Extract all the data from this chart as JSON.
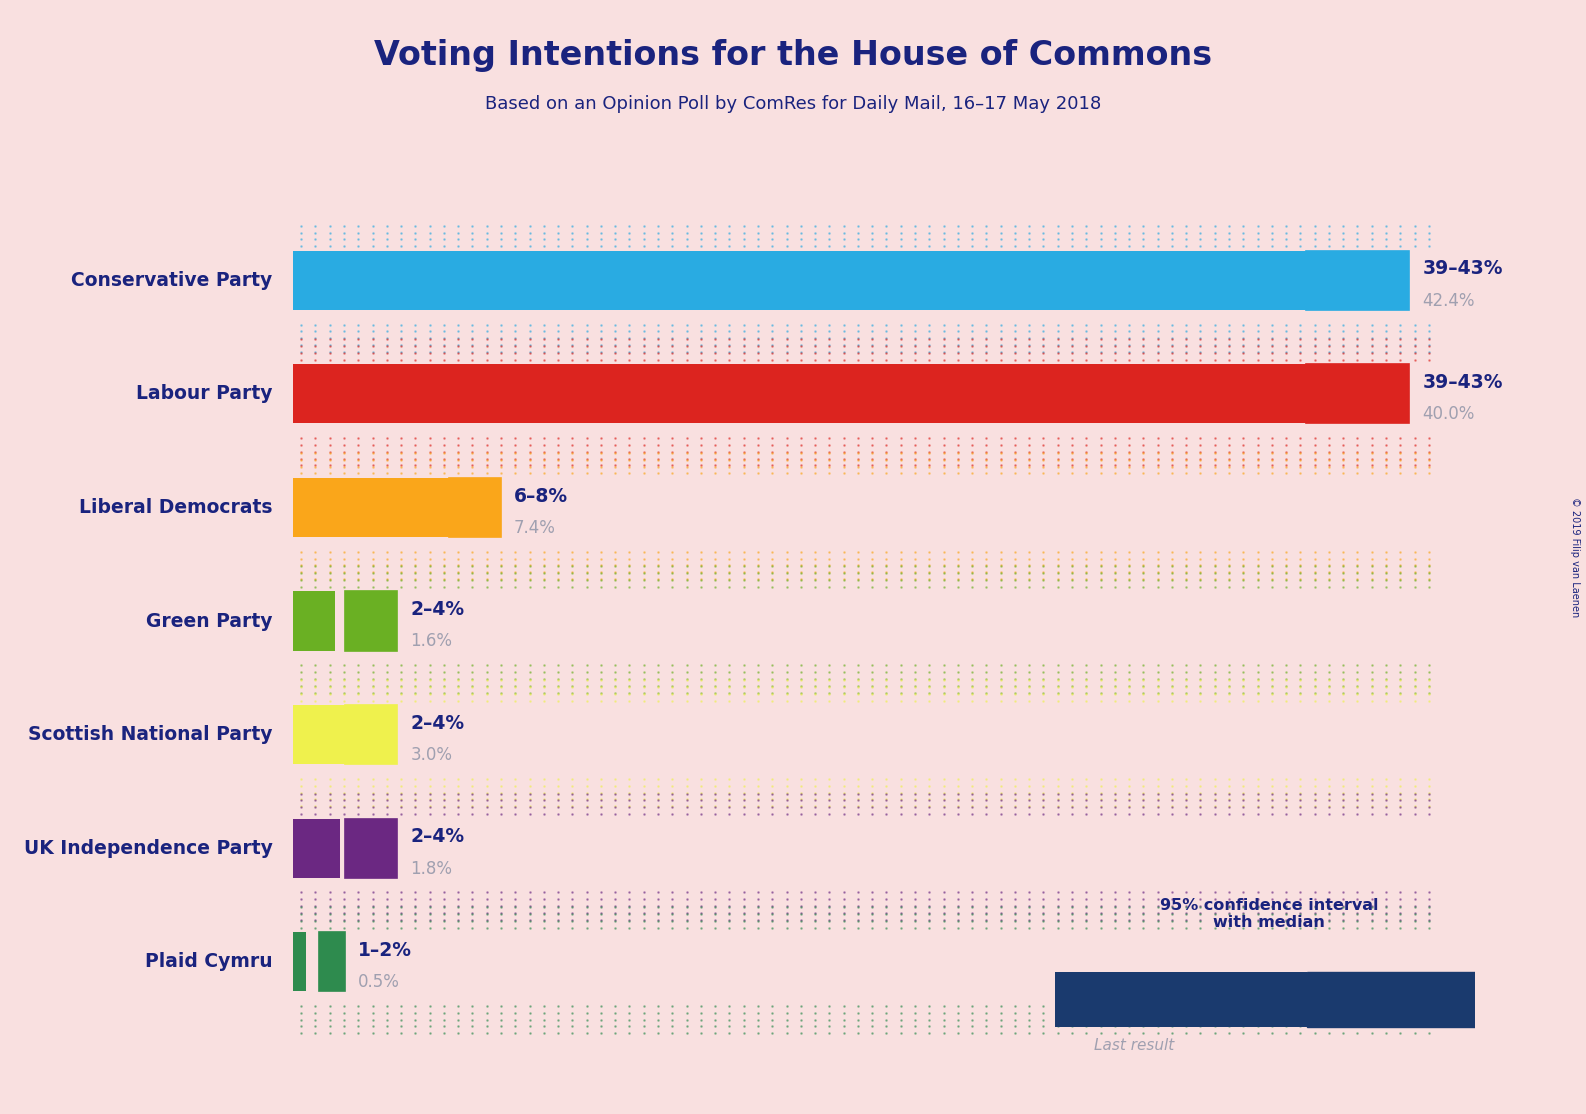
{
  "title": "Voting Intentions for the House of Commons",
  "subtitle": "Based on an Opinion Poll by ComRes for Daily Mail, 16–17 May 2018",
  "copyright": "© 2019 Filip van Laenen",
  "background_color": "#f9e0e0",
  "parties": [
    {
      "name": "Conservative Party",
      "last_result": 42.4,
      "ci_low": 39,
      "ci_high": 43,
      "color": "#29ABE2",
      "label_range": "39–43%",
      "label_median": "42.4%"
    },
    {
      "name": "Labour Party",
      "last_result": 40.0,
      "ci_low": 39,
      "ci_high": 43,
      "color": "#DC241f",
      "label_range": "39–43%",
      "label_median": "40.0%"
    },
    {
      "name": "Liberal Democrats",
      "last_result": 7.4,
      "ci_low": 6,
      "ci_high": 8,
      "color": "#FAA61A",
      "label_range": "6–8%",
      "label_median": "7.4%"
    },
    {
      "name": "Green Party",
      "last_result": 1.6,
      "ci_low": 2,
      "ci_high": 4,
      "color": "#6AB023",
      "label_range": "2–4%",
      "label_median": "1.6%"
    },
    {
      "name": "Scottish National Party",
      "last_result": 3.0,
      "ci_low": 2,
      "ci_high": 4,
      "color": "#EFF14D",
      "label_range": "2–4%",
      "label_median": "3.0%"
    },
    {
      "name": "UK Independence Party",
      "last_result": 1.8,
      "ci_low": 2,
      "ci_high": 4,
      "color": "#6B2882",
      "label_range": "2–4%",
      "label_median": "1.8%"
    },
    {
      "name": "Plaid Cymru",
      "last_result": 0.5,
      "ci_low": 1,
      "ci_high": 2,
      "color": "#2E8B4E",
      "label_range": "1–2%",
      "label_median": "0.5%"
    }
  ],
  "x_max": 44,
  "text_color_dark": "#1a237e",
  "text_color_gray": "#a0a0b0",
  "legend_dark_color": "#1a3a6e"
}
